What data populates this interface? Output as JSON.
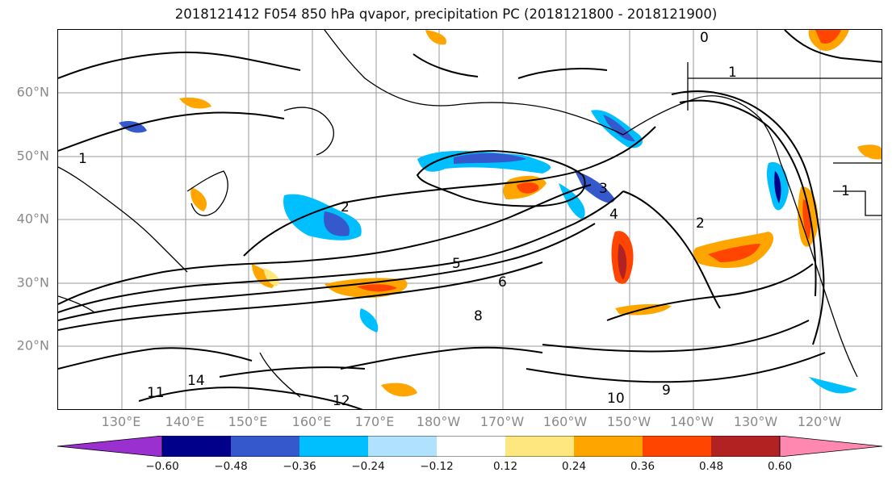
{
  "title": "2018121412 F054 850 hPa qvapor, precipitation PC (2018121800 - 2018121900)",
  "lat_labels": [
    "60°N",
    "50°N",
    "40°N",
    "30°N",
    "20°N"
  ],
  "lon_labels": [
    "130°E",
    "140°E",
    "150°E",
    "160°E",
    "170°E",
    "180°W",
    "170°W",
    "160°W",
    "150°W",
    "140°W",
    "130°W",
    "120°W"
  ],
  "colorbar": {
    "ticks": [
      "−0.60",
      "−0.48",
      "−0.36",
      "−0.24",
      "−0.12",
      "0.12",
      "0.24",
      "0.36",
      "0.48",
      "0.60"
    ],
    "colors": [
      "#9b30d0",
      "#00008b",
      "#3558cd",
      "#00bfff",
      "#b0e2ff",
      "#ffffff",
      "#ffe77f",
      "#ffa500",
      "#ff4500",
      "#b22222",
      "#ff88b0"
    ]
  },
  "contour_labels": [
    "1",
    "1",
    "2",
    "3",
    "4",
    "5",
    "6",
    "8",
    "9",
    "10",
    "11",
    "12",
    "14",
    "0",
    "1",
    "2"
  ]
}
